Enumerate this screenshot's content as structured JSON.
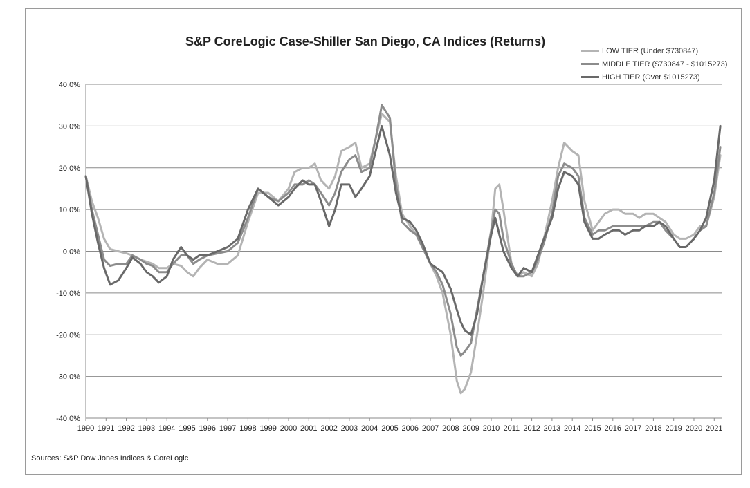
{
  "chart_data": {
    "type": "line",
    "title": "S&P CoreLogic Case-Shiller San Diego, CA Indices (Returns)",
    "source": "Sources: S&P Dow Jones Indices & CoreLogic",
    "xlabel": "",
    "ylabel": "",
    "xlim": [
      1990,
      2021.4
    ],
    "ylim": [
      -40,
      40
    ],
    "y_ticks": [
      40,
      30,
      20,
      10,
      0,
      -10,
      -20,
      -30,
      -40
    ],
    "y_tick_labels": [
      "40.0%",
      "30.0%",
      "20.0%",
      "10.0%",
      "0.0%",
      "-10.0%",
      "-20.0%",
      "-30.0%",
      "-40.0%"
    ],
    "x_ticks": [
      1990,
      1991,
      1992,
      1993,
      1994,
      1995,
      1996,
      1997,
      1998,
      1999,
      2000,
      2001,
      2002,
      2003,
      2004,
      2005,
      2006,
      2007,
      2008,
      2009,
      2010,
      2011,
      2012,
      2013,
      2014,
      2015,
      2016,
      2017,
      2018,
      2019,
      2020,
      2021
    ],
    "x_tick_labels": [
      "1990",
      "1991",
      "1992",
      "1993",
      "1994",
      "1995",
      "1996",
      "1997",
      "1998",
      "1999",
      "2000",
      "2001",
      "2002",
      "2003",
      "2004",
      "2005",
      "2006",
      "2007",
      "2008",
      "2009",
      "2010",
      "2011",
      "2012",
      "2013",
      "2014",
      "2015",
      "2016",
      "2017",
      "2018",
      "2019",
      "2020",
      "2021"
    ],
    "grid": "horizontal",
    "legend_position": "top-right",
    "series": [
      {
        "name": "LOW TIER (Under $730847)",
        "color": "#b4b4b4",
        "x": [
          1990,
          1990.3,
          1990.6,
          1990.9,
          1991.2,
          1991.6,
          1992,
          1992.3,
          1992.7,
          1993,
          1993.3,
          1993.6,
          1994,
          1994.3,
          1994.7,
          1995,
          1995.3,
          1995.6,
          1996,
          1996.5,
          1997,
          1997.5,
          1998,
          1998.5,
          1999,
          1999.5,
          2000,
          2000.3,
          2000.7,
          2001,
          2001.3,
          2001.6,
          2002,
          2002.3,
          2002.6,
          2003,
          2003.3,
          2003.6,
          2004,
          2004.3,
          2004.6,
          2005,
          2005.3,
          2005.6,
          2006,
          2006.3,
          2006.6,
          2007,
          2007.3,
          2007.6,
          2008,
          2008.3,
          2008.5,
          2008.7,
          2009,
          2009.3,
          2009.6,
          2010,
          2010.2,
          2010.4,
          2010.6,
          2011,
          2011.3,
          2011.6,
          2012,
          2012.3,
          2012.6,
          2013,
          2013.3,
          2013.6,
          2014,
          2014.3,
          2014.6,
          2015,
          2015.3,
          2015.6,
          2016,
          2016.3,
          2016.6,
          2017,
          2017.3,
          2017.6,
          2018,
          2018.3,
          2018.6,
          2019,
          2019.3,
          2019.6,
          2020,
          2020.3,
          2020.6,
          2021,
          2021.3
        ],
        "values": [
          18,
          12,
          8,
          3,
          0.5,
          0,
          -0.5,
          -1,
          -2,
          -2.5,
          -3,
          -4,
          -4,
          -3,
          -3.5,
          -5,
          -6,
          -4,
          -2,
          -3,
          -3,
          -1,
          7,
          14,
          14,
          12,
          15,
          19,
          20,
          20,
          21,
          17,
          15,
          18,
          24,
          25,
          26,
          20,
          21,
          27,
          33,
          31,
          18,
          9,
          6,
          4,
          1,
          -3,
          -6,
          -10,
          -20,
          -31,
          -34,
          -33,
          -29,
          -20,
          -10,
          5,
          15,
          16,
          10,
          -3,
          -6,
          -5,
          -6,
          -3,
          3,
          12,
          20,
          26,
          24,
          23,
          12,
          5,
          7,
          9,
          10,
          10,
          9,
          9,
          8,
          9,
          9,
          8,
          7,
          4,
          3,
          3,
          4,
          6,
          6,
          13,
          23
        ]
      },
      {
        "name": "MIDDLE TIER ($730847 - $1015273)",
        "color": "#8c8c8c",
        "x": [
          1990,
          1990.3,
          1990.6,
          1990.9,
          1991.2,
          1991.6,
          1992,
          1992.3,
          1992.7,
          1993,
          1993.3,
          1993.6,
          1994,
          1994.3,
          1994.7,
          1995,
          1995.3,
          1995.6,
          1996,
          1996.5,
          1997,
          1997.5,
          1998,
          1998.5,
          1999,
          1999.5,
          2000,
          2000.3,
          2000.7,
          2001,
          2001.3,
          2001.6,
          2002,
          2002.3,
          2002.6,
          2003,
          2003.3,
          2003.6,
          2004,
          2004.3,
          2004.6,
          2005,
          2005.3,
          2005.6,
          2006,
          2006.3,
          2006.6,
          2007,
          2007.3,
          2007.6,
          2008,
          2008.3,
          2008.5,
          2008.7,
          2009,
          2009.3,
          2009.6,
          2010,
          2010.2,
          2010.4,
          2010.6,
          2011,
          2011.3,
          2011.6,
          2012,
          2012.3,
          2012.6,
          2013,
          2013.3,
          2013.6,
          2014,
          2014.3,
          2014.6,
          2015,
          2015.3,
          2015.6,
          2016,
          2016.3,
          2016.6,
          2017,
          2017.3,
          2017.6,
          2018,
          2018.3,
          2018.6,
          2019,
          2019.3,
          2019.6,
          2020,
          2020.3,
          2020.6,
          2021,
          2021.3
        ],
        "values": [
          18,
          10,
          4,
          -2,
          -3.5,
          -3,
          -3,
          -1,
          -2,
          -3,
          -3.5,
          -5,
          -5,
          -3,
          -1,
          -1,
          -3,
          -2,
          -1,
          -0.5,
          0,
          2,
          8,
          15,
          13,
          12,
          14,
          16,
          16,
          17,
          16,
          14,
          11,
          14,
          19,
          22,
          23,
          19,
          20,
          27,
          35,
          32,
          16,
          7,
          5,
          4,
          1,
          -3,
          -5,
          -8,
          -15,
          -23,
          -25,
          -24,
          -22,
          -14,
          -6,
          5,
          10,
          9,
          3,
          -3,
          -6,
          -6,
          -5,
          -2,
          2,
          9,
          18,
          21,
          20,
          18,
          8,
          4,
          5,
          5,
          6,
          6,
          6,
          6,
          6,
          6,
          7,
          7,
          5,
          3,
          1,
          1,
          3,
          5,
          6,
          14,
          25
        ]
      },
      {
        "name": "HIGH TIER (Over $1015273)",
        "color": "#696969",
        "x": [
          1990,
          1990.3,
          1990.6,
          1990.9,
          1991.2,
          1991.6,
          1992,
          1992.3,
          1992.7,
          1993,
          1993.3,
          1993.6,
          1994,
          1994.3,
          1994.7,
          1995,
          1995.3,
          1995.6,
          1996,
          1996.5,
          1997,
          1997.5,
          1998,
          1998.5,
          1999,
          1999.5,
          2000,
          2000.3,
          2000.7,
          2001,
          2001.3,
          2001.6,
          2002,
          2002.3,
          2002.6,
          2003,
          2003.3,
          2003.6,
          2004,
          2004.3,
          2004.6,
          2005,
          2005.3,
          2005.6,
          2006,
          2006.3,
          2006.6,
          2007,
          2007.3,
          2007.6,
          2008,
          2008.3,
          2008.5,
          2008.7,
          2009,
          2009.3,
          2009.6,
          2010,
          2010.2,
          2010.4,
          2010.6,
          2011,
          2011.3,
          2011.6,
          2012,
          2012.3,
          2012.6,
          2013,
          2013.3,
          2013.6,
          2014,
          2014.3,
          2014.6,
          2015,
          2015.3,
          2015.6,
          2016,
          2016.3,
          2016.6,
          2017,
          2017.3,
          2017.6,
          2018,
          2018.3,
          2018.6,
          2019,
          2019.3,
          2019.6,
          2020,
          2020.3,
          2020.6,
          2021,
          2021.3
        ],
        "values": [
          18,
          9,
          2,
          -4,
          -8,
          -7,
          -4,
          -1.5,
          -3,
          -5,
          -6,
          -7.5,
          -6,
          -2,
          1,
          -1,
          -2,
          -1,
          -1,
          0,
          1,
          3,
          10,
          15,
          13,
          11,
          13,
          15,
          17,
          16,
          16,
          12,
          6,
          10,
          16,
          16,
          13,
          15,
          18,
          24,
          30,
          23,
          14,
          8,
          7,
          5,
          2,
          -3,
          -4,
          -5,
          -9,
          -14,
          -17,
          -19,
          -20,
          -15,
          -6,
          4,
          8,
          4,
          0,
          -4,
          -6,
          -4,
          -5,
          -1,
          3,
          8,
          15,
          19,
          18,
          16,
          7,
          3,
          3,
          4,
          5,
          5,
          4,
          5,
          5,
          6,
          6,
          7,
          6,
          3,
          1,
          1,
          3,
          5,
          8,
          17,
          30
        ]
      }
    ]
  }
}
